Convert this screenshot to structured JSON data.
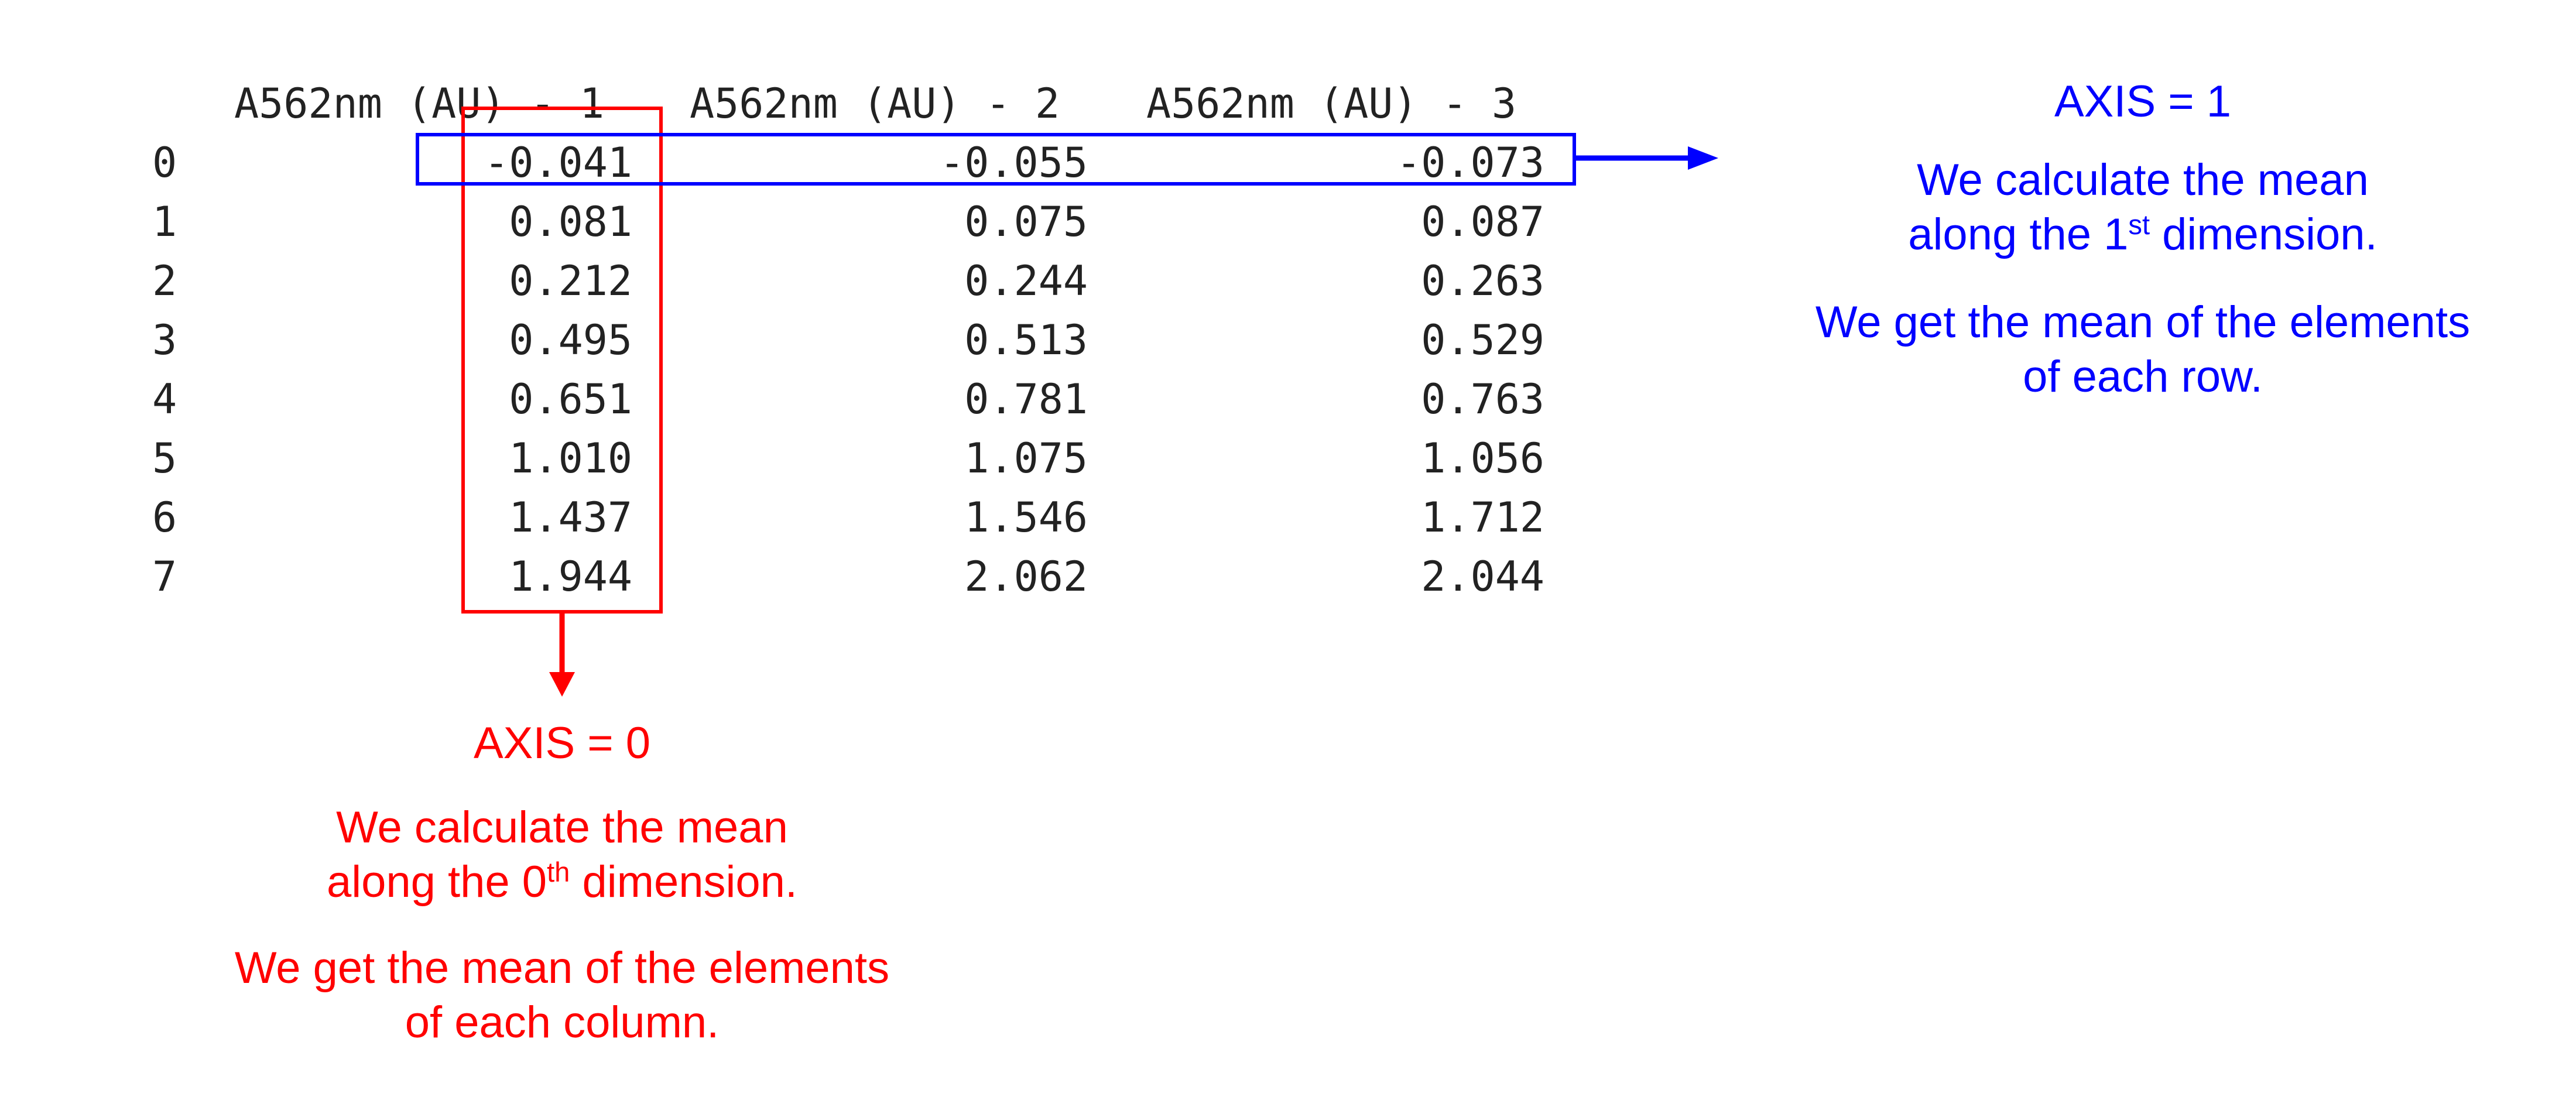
{
  "table": {
    "columns": [
      "A562nm (AU) - 1",
      "A562nm (AU) - 2",
      "A562nm (AU) - 3"
    ],
    "rows": [
      {
        "index": "0",
        "values": [
          "-0.041",
          "-0.055",
          "-0.073"
        ]
      },
      {
        "index": "1",
        "values": [
          "0.081",
          "0.075",
          "0.087"
        ]
      },
      {
        "index": "2",
        "values": [
          "0.212",
          "0.244",
          "0.263"
        ]
      },
      {
        "index": "3",
        "values": [
          "0.495",
          "0.513",
          "0.529"
        ]
      },
      {
        "index": "4",
        "values": [
          "0.651",
          "0.781",
          "0.763"
        ]
      },
      {
        "index": "5",
        "values": [
          "1.010",
          "1.075",
          "1.056"
        ]
      },
      {
        "index": "6",
        "values": [
          "1.437",
          "1.546",
          "1.712"
        ]
      },
      {
        "index": "7",
        "values": [
          "1.944",
          "2.062",
          "2.044"
        ]
      }
    ]
  },
  "axis0": {
    "title": "AXIS = 0",
    "line1": "We calculate the mean",
    "line2_pre": "along the 0",
    "line2_sup": "th",
    "line2_post": " dimension.",
    "line3": "We get the mean of the elements",
    "line4": "of each column.",
    "color": "#ff0000"
  },
  "axis1": {
    "title": "AXIS = 1",
    "line1": "We calculate the mean",
    "line2_pre": "along the 1",
    "line2_sup": "st",
    "line2_post": " dimension.",
    "line3": "We get the mean of the elements",
    "line4": "of each row.",
    "color": "#0000ff"
  }
}
